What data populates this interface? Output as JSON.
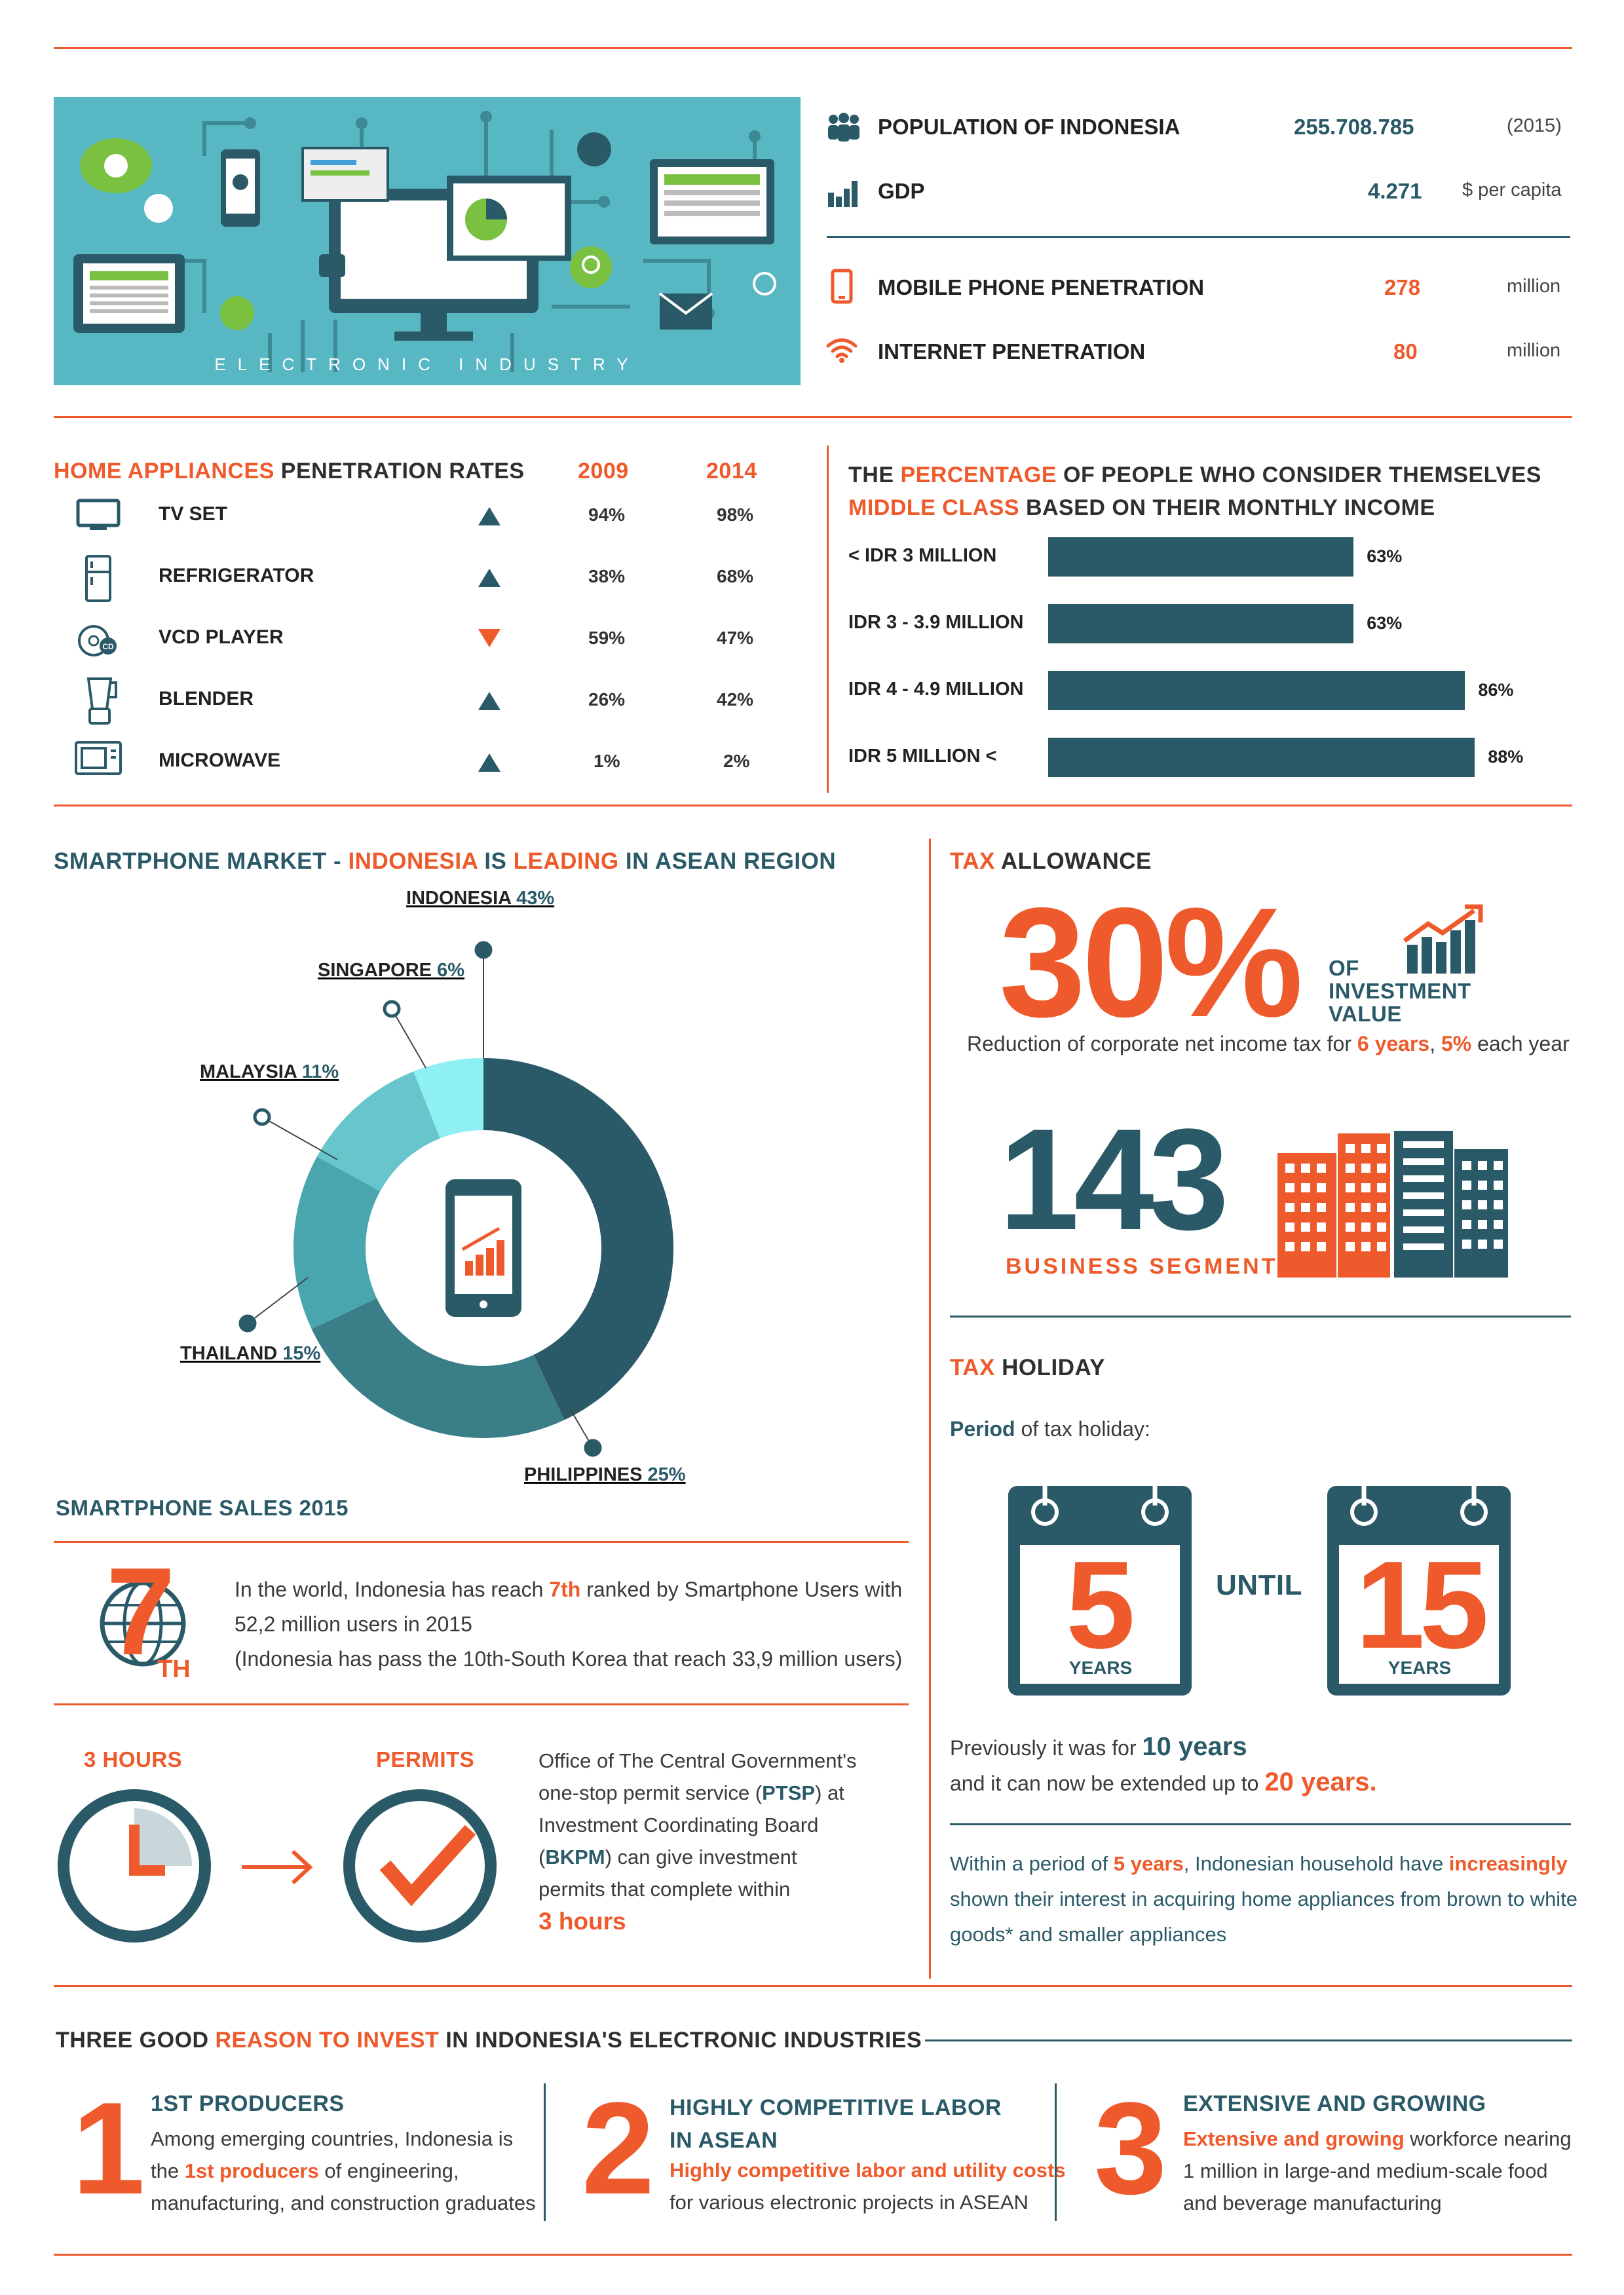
{
  "banner": {
    "caption": "ELECTRONIC INDUSTRY"
  },
  "stats": [
    {
      "label": "POPULATION OF INDONESIA",
      "value": "255.708.785",
      "unit": "(2015)",
      "icon": "people-icon"
    },
    {
      "label": "GDP",
      "value": "4.271",
      "unit": "$ per capita",
      "icon": "bar-chart-icon"
    },
    {
      "label": "MOBILE PHONE PENETRATION",
      "value": "278",
      "unit": "million",
      "icon": "mobile-phone-icon"
    },
    {
      "label": "INTERNET PENETRATION",
      "value": "80",
      "unit": "million",
      "icon": "wifi-icon"
    }
  ],
  "appliances": {
    "title_highlight": "HOME APPLIANCES",
    "title_rest": " PENETRATION RATES",
    "year1": "2009",
    "year2": "2014",
    "rows": [
      {
        "name": "TV SET",
        "trend": "up",
        "v2009": "94%",
        "v2014": "98%",
        "icon": "tv-icon"
      },
      {
        "name": "REFRIGERATOR",
        "trend": "up",
        "v2009": "38%",
        "v2014": "68%",
        "icon": "refrigerator-icon"
      },
      {
        "name": "VCD PLAYER",
        "trend": "down",
        "v2009": "59%",
        "v2014": "47%",
        "icon": "vcd-icon"
      },
      {
        "name": "BLENDER",
        "trend": "up",
        "v2009": "26%",
        "v2014": "42%",
        "icon": "blender-icon"
      },
      {
        "name": "MICROWAVE",
        "trend": "up",
        "v2009": "1%",
        "v2014": "2%",
        "icon": "microwave-icon"
      }
    ]
  },
  "middle_class": {
    "line1_a": "THE ",
    "line1_b": "PERCENTAGE",
    "line1_c": " OF PEOPLE WHO CONSIDER THEMSELVES",
    "line2_a": "MIDDLE CLASS",
    "line2_b": " BASED ON THEIR MONTHLY INCOME",
    "chart_data": {
      "type": "bar",
      "orientation": "horizontal",
      "categories": [
        "< IDR 3 MILLION",
        "IDR 3 - 3.9 MILLION",
        "IDR 4 - 4.9 MILLION",
        "IDR 5 MILLION <"
      ],
      "values": [
        63,
        63,
        86,
        88
      ],
      "labels": [
        "63%",
        "63%",
        "86%",
        "88%"
      ],
      "color": "#2a5a68"
    }
  },
  "smartphone": {
    "title_a": "SMARTPHONE MARKET - ",
    "title_b": "INDONESIA",
    "title_c": " IS ",
    "title_d": "LEADING",
    "title_e": " IN ASEAN REGION",
    "chart_data": {
      "type": "pie",
      "style": "donut",
      "slices": [
        {
          "name": "INDONESIA",
          "label": "43%",
          "value": 43,
          "color": "#2a5a68"
        },
        {
          "name": "PHILIPPINES",
          "label": "25%",
          "value": 25,
          "color": "#3a7f88"
        },
        {
          "name": "THAILAND",
          "label": "15%",
          "value": 15,
          "color": "#4aa6ae"
        },
        {
          "name": "MALAYSIA",
          "label": "11%",
          "value": 11,
          "color": "#66c6cc"
        },
        {
          "name": "SINGAPORE",
          "label": "6%",
          "value": 6,
          "color": "#8ef0f2"
        }
      ]
    },
    "sales_title": "SMARTPHONE SALES 2015",
    "rank_big": "7",
    "rank_sup": "TH",
    "rank_text_a": "In the world, Indonesia has reach ",
    "rank_text_b": "7th",
    "rank_text_c": " ranked by Smartphone Users with",
    "rank_text_line2": "52,2 million users in 2015",
    "rank_text_line3": "(Indonesia has pass the 10th-South Korea that reach 33,9 million users)"
  },
  "permits": {
    "hours_label": "3 HOURS",
    "permits_label": "PERMITS",
    "line1": "Office of The Central Government's",
    "line2_a": "one-stop permit service (",
    "line2_b": "PTSP",
    "line2_c": ") at",
    "line3": "Investment Coordinating Board",
    "line4_a": "(",
    "line4_b": "BKPM",
    "line4_c": ") can give investment",
    "line5": "permits that complete within",
    "line6": "3 hours"
  },
  "tax_allowance": {
    "title_a": "TAX",
    "title_b": " ALLOWANCE",
    "big": "30%",
    "of_line1": "OF",
    "of_line2": "INVESTMENT",
    "of_line3": "VALUE",
    "desc_a": "Reduction of corporate net income tax for ",
    "desc_b": "6 years",
    "desc_c": ", ",
    "desc_d": "5%",
    "desc_e": " each year",
    "segments_big": "143",
    "segments_label": "BUSINESS SEGMENT"
  },
  "tax_holiday": {
    "title_a": "TAX",
    "title_b": " HOLIDAY",
    "period_a": "Period",
    "period_b": " of tax holiday:",
    "cal1_num": "5",
    "cal1_unit": "YEARS",
    "until": "UNTIL",
    "cal2_num": "15",
    "cal2_unit": "YEARS",
    "prev_a": "Previously it was for ",
    "prev_b": "10 years",
    "ext_a": "and it can now be extended up to ",
    "ext_b": "20 years.",
    "hh_a": "Within a period of ",
    "hh_b": "5 years",
    "hh_c": ", Indonesian household have ",
    "hh_d": "increasingly",
    "hh_line2": "shown their interest in acquiring home appliances from brown to white",
    "hh_line3": "goods* and smaller appliances"
  },
  "reasons": {
    "title_a": "THREE GOOD ",
    "title_b": "REASON TO INVEST",
    "title_c": " IN INDONESIA'S ELECTRONIC INDUSTRIES",
    "items": [
      {
        "num": "1",
        "head1": "1ST PRODUCERS",
        "head2": "",
        "l1a": "Among emerging countries, Indonesia is",
        "l1b": "",
        "l2a": "the ",
        "l2b": "1st producers",
        "l2c": " of engineering,",
        "l3": "manufacturing, and construction graduates"
      },
      {
        "num": "2",
        "head1": "HIGHLY COMPETITIVE LABOR",
        "head2": "IN ASEAN",
        "l1a": "",
        "l1b": "Highly competitive labor and utility costs",
        "l2a": "for various electronic projects in ASEAN",
        "l2b": "",
        "l2c": "",
        "l3": ""
      },
      {
        "num": "3",
        "head1": "EXTENSIVE AND GROWING",
        "head2": "",
        "l1a": "",
        "l1b": "Extensive and growing",
        "l1c": " workforce nearing",
        "l2a": "1 million in large-and medium-scale food",
        "l2b": "",
        "l2c": "",
        "l3": "and beverage manufacturing"
      }
    ]
  }
}
